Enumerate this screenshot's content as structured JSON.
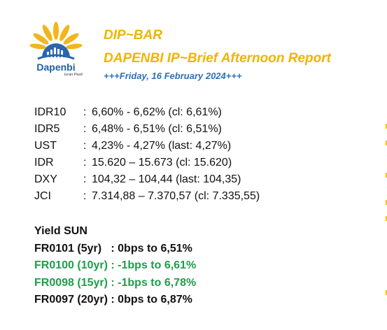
{
  "logo": {
    "name": "Dapenbi",
    "tagline": "Iuran Pasti"
  },
  "header": {
    "title": "DIP~BAR",
    "subtitle": "DAPENBI IP~Brief Afternoon Report",
    "date": "+++Friday, 16 February 2024+++"
  },
  "colors": {
    "title": "#f0b400",
    "date": "#2e6fb7",
    "logo_blue": "#1f5fa8",
    "green": "#1e9e4a",
    "black": "#111111"
  },
  "rates": [
    {
      "label": "IDR10",
      "sep": ":",
      "value": "6,60% - 6,62% (cl: 6,61%)"
    },
    {
      "label": "IDR5",
      "sep": ":",
      "value": "6,48% - 6,51% (cl: 6,51%)"
    },
    {
      "label": "UST",
      "sep": ":",
      "value": "4,23% - 4,27% (last: 4,27%)"
    },
    {
      "label": "IDR",
      "sep": ":",
      "value": "15.620 – 15.673 (cl: 15.620)"
    },
    {
      "label": "DXY",
      "sep": ":",
      "value": "104,32 – 104,44 (last: 104,35)"
    },
    {
      "label": "JCI",
      "sep": ":",
      "value": "7.314,88 – 7.370,57 (cl: 7.335,55)"
    }
  ],
  "yield_sun": {
    "heading": "Yield SUN",
    "rows": [
      {
        "text": "FR0101 (5yr)   : 0bps to 6,51%",
        "color": "#111111"
      },
      {
        "text": "FR0100 (10yr) : -1bps to 6,61%",
        "color": "#1e9e4a"
      },
      {
        "text": "FR0098 (15yr) : -1bps to 6,78%",
        "color": "#1e9e4a"
      },
      {
        "text": "FR0097 (20yr) : 0bps to 6,87%",
        "color": "#111111"
      }
    ]
  }
}
